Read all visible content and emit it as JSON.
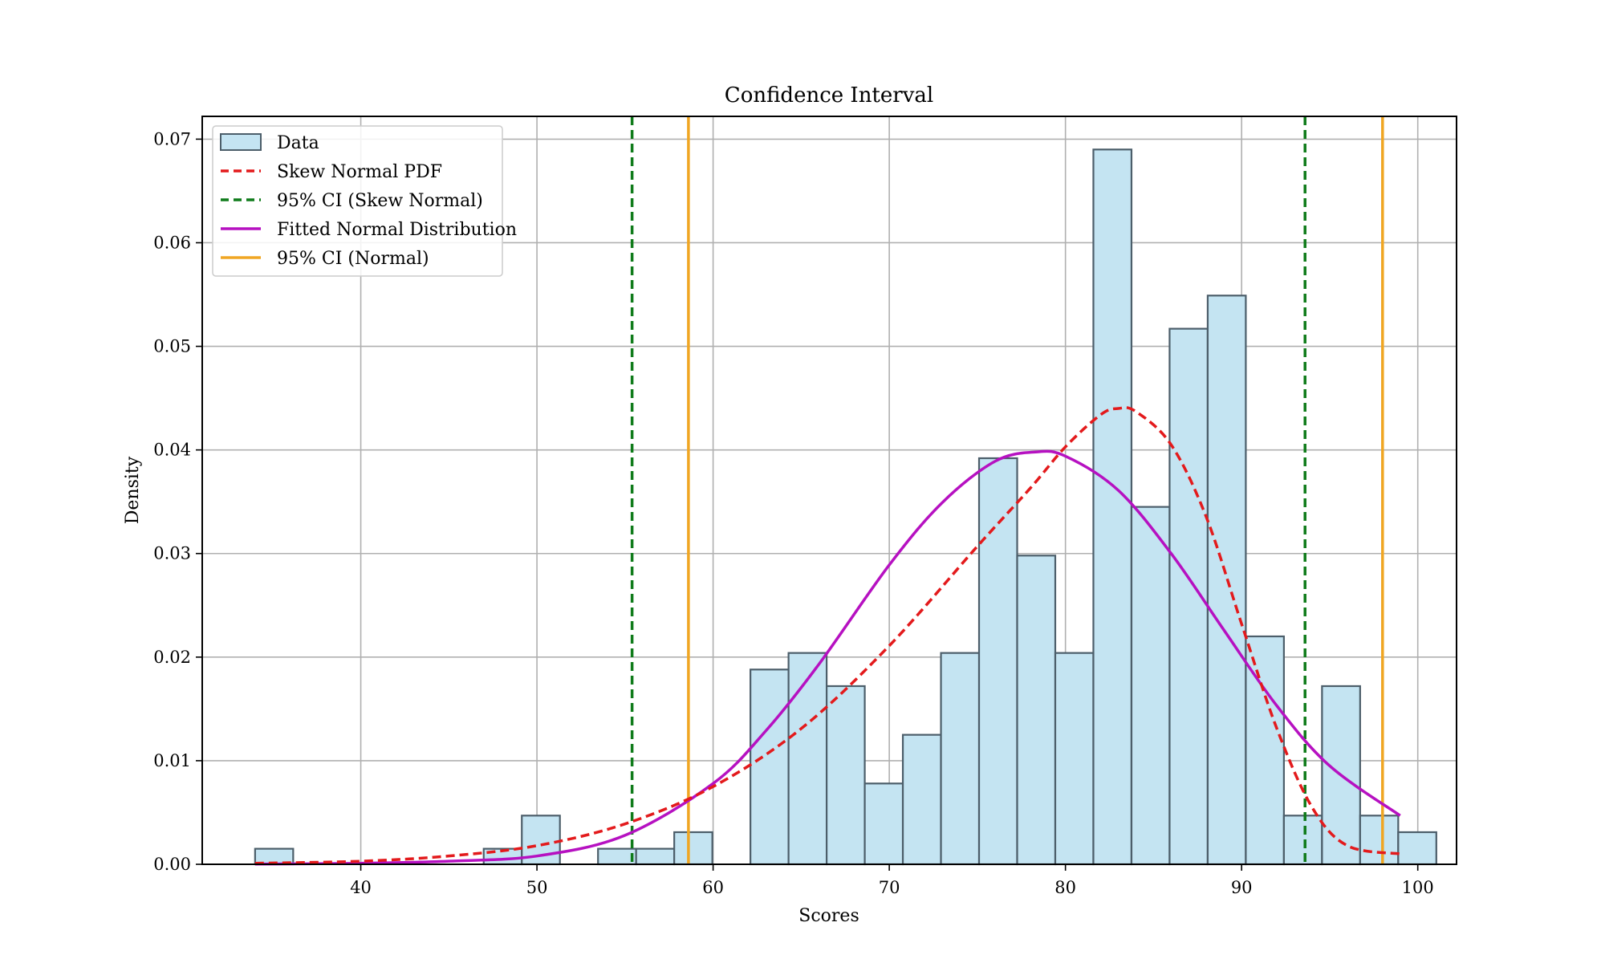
{
  "chart_data": {
    "type": "bar",
    "title": "Confidence Interval",
    "xlabel": "Scores",
    "ylabel": "Density",
    "xlim": [
      31,
      102.2
    ],
    "ylim": [
      0,
      0.0722
    ],
    "xticks": [
      40,
      50,
      60,
      70,
      80,
      90,
      100
    ],
    "xtick_labels": [
      "40",
      "50",
      "60",
      "70",
      "80",
      "90",
      "100"
    ],
    "yticks": [
      0.0,
      0.01,
      0.02,
      0.03,
      0.04,
      0.05,
      0.06,
      0.07
    ],
    "ytick_labels": [
      "0.00",
      "0.01",
      "0.02",
      "0.03",
      "0.04",
      "0.05",
      "0.06",
      "0.07"
    ],
    "grid": true,
    "legend_position": "top-left",
    "colors": {
      "bar_fill": "#c4e4f2",
      "bar_edge": "#4c5e6a",
      "skew_normal": "#e31a1c",
      "ci_skew": "#0f7b1a",
      "normal": "#b611c1",
      "ci_normal": "#f0a623",
      "grid": "#b0b0b0"
    },
    "histogram": {
      "name": "Data",
      "bin_width": 2.163,
      "bin_start": 34.0,
      "values": [
        0.0015,
        0,
        0,
        0,
        0,
        0,
        0.0015,
        0.0047,
        0,
        0.0015,
        0.0015,
        0.0031,
        0,
        0.0188,
        0.0204,
        0.0172,
        0.0078,
        0.0125,
        0.0204,
        0.0392,
        0.0298,
        0.0204,
        0.069,
        0.0345,
        0.0517,
        0.0549,
        0.022,
        0.0047,
        0.0172,
        0.0047,
        0.0031
      ]
    },
    "skew_normal": {
      "name": "Skew Normal PDF",
      "x": [
        34,
        40,
        45,
        50,
        55,
        60,
        65,
        70,
        75,
        78,
        80,
        82,
        83,
        84,
        86,
        88,
        90,
        92,
        94,
        96,
        99
      ],
      "y": [
        0.0001,
        0.0003,
        0.0008,
        0.0018,
        0.0039,
        0.0075,
        0.0131,
        0.0211,
        0.0307,
        0.0363,
        0.0403,
        0.0434,
        0.044,
        0.0437,
        0.0405,
        0.0335,
        0.0232,
        0.0131,
        0.0055,
        0.0018,
        0.001
      ]
    },
    "normal": {
      "name": "Fitted Normal Distribution",
      "x": [
        34,
        40,
        45,
        50,
        55,
        60,
        63,
        66,
        70,
        73,
        76,
        78.3,
        80,
        83,
        86,
        89,
        92,
        95,
        99
      ],
      "y": [
        2e-05,
        0.0001,
        0.0003,
        0.0008,
        0.0028,
        0.0078,
        0.0129,
        0.0193,
        0.0289,
        0.0349,
        0.0389,
        0.0398,
        0.0394,
        0.0361,
        0.03,
        0.0226,
        0.0153,
        0.0095,
        0.0047
      ]
    },
    "ci_skew_normal": {
      "name": "95% CI (Skew Normal)",
      "x": [
        55.4,
        93.6
      ]
    },
    "ci_normal": {
      "name": "95% CI (Normal)",
      "x": [
        58.6,
        98.0
      ]
    },
    "legend": [
      "Data",
      "Skew Normal PDF",
      "95% CI (Skew Normal)",
      "Fitted Normal Distribution",
      "95% CI (Normal)"
    ]
  }
}
